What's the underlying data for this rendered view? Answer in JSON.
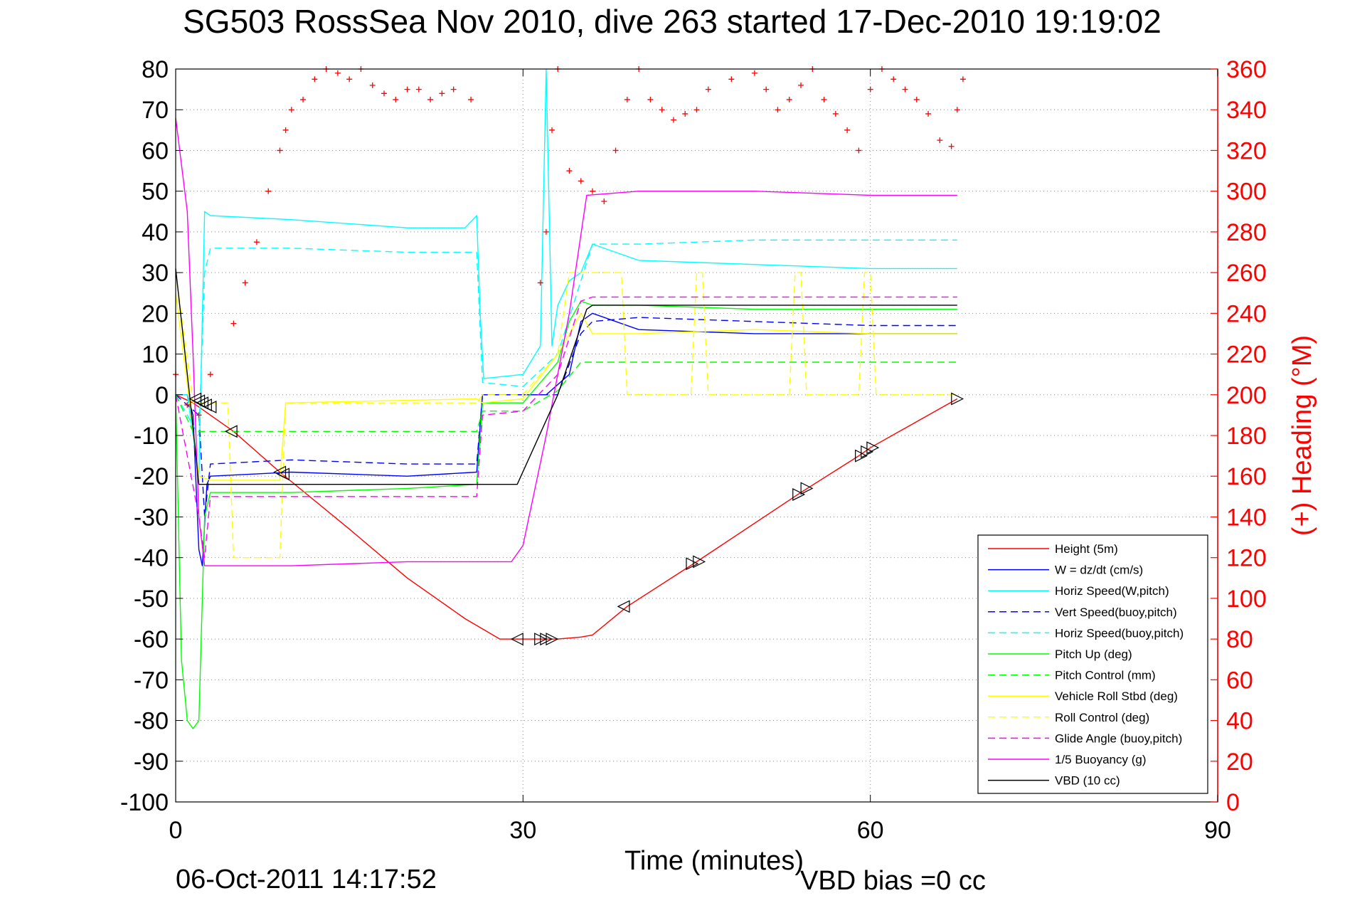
{
  "chart_data": {
    "type": "line",
    "title": "SG503 RossSea Nov 2010, dive 263 started 17-Dec-2010 19:19:02",
    "xlabel": "Time (minutes)",
    "ylabel_right": "(+) Heading (°M)",
    "xlim": [
      0,
      90
    ],
    "ylim": [
      -100,
      80
    ],
    "ylim_right": [
      0,
      360
    ],
    "x_ticks": [
      "0",
      "30",
      "60",
      "90"
    ],
    "y_ticks": [
      "80",
      "70",
      "60",
      "50",
      "40",
      "30",
      "20",
      "10",
      "0",
      "-10",
      "-20",
      "-30",
      "-40",
      "-50",
      "-60",
      "-70",
      "-80",
      "-90",
      "-100"
    ],
    "y_right_ticks": [
      "360",
      "340",
      "320",
      "300",
      "280",
      "260",
      "240",
      "220",
      "200",
      "180",
      "160",
      "140",
      "120",
      "100",
      "80",
      "60",
      "40",
      "20",
      "0"
    ],
    "grid": true,
    "legend_position": "bottom-right",
    "colors": {
      "red": "#ff0000",
      "blue": "#0000ff",
      "cyan": "#00ffff",
      "green": "#00ff00",
      "yellow": "#ffff00",
      "magenta": "#ff00ff",
      "black": "#000000"
    },
    "series": [
      {
        "name": "Height (5m)",
        "color": "#ff0000",
        "style": "solid",
        "x": [
          0,
          1.5,
          2.5,
          5,
          9,
          15,
          20,
          25,
          28,
          30,
          33,
          35,
          36,
          39,
          45,
          54,
          59,
          60,
          67.5
        ],
        "y": [
          0,
          -2,
          -4,
          -9,
          -19,
          -33,
          -45,
          -55,
          -60,
          -60,
          -60,
          -59.5,
          -59,
          -52,
          -41,
          -24,
          -15,
          -13,
          -1
        ]
      },
      {
        "name": "W = dz/dt (cm/s)",
        "color": "#0000ff",
        "style": "solid",
        "x": [
          0,
          1,
          1.5,
          2,
          2.3,
          2.7,
          3,
          10,
          20,
          26,
          26.5,
          30,
          32,
          34,
          35,
          36,
          40,
          50,
          60,
          67.5
        ],
        "y": [
          0,
          0,
          -5,
          -38,
          -42,
          -22,
          -20,
          -19,
          -20,
          -19,
          0,
          0,
          0,
          5,
          18,
          20,
          16,
          15,
          15,
          15
        ]
      },
      {
        "name": "Horiz Speed(W,pitch)",
        "color": "#00ffff",
        "style": "solid",
        "x": [
          0,
          1,
          2,
          2.5,
          3,
          10,
          20,
          25,
          26,
          26.3,
          26.6,
          30,
          31.5,
          32,
          32.5,
          33,
          34,
          35,
          36,
          40,
          50,
          60,
          67.5
        ],
        "y": [
          0,
          0,
          -20,
          45,
          44,
          43,
          41,
          41,
          44,
          20,
          4,
          5,
          12,
          80,
          12,
          22,
          28,
          30,
          37,
          33,
          32,
          31,
          31
        ]
      },
      {
        "name": "Vert Speed(buoy,pitch)",
        "color": "#0000ff",
        "style": "dashed",
        "x": [
          0,
          2,
          2.5,
          3,
          10,
          20,
          26,
          26.5,
          30,
          33,
          35,
          36,
          40,
          50,
          60,
          67.5
        ],
        "y": [
          0,
          -5,
          -30,
          -17,
          -16,
          -17,
          -17,
          0,
          0,
          0,
          15,
          18,
          19,
          18,
          17,
          17
        ]
      },
      {
        "name": "Horiz Speed(buoy,pitch)",
        "color": "#00ffff",
        "style": "dashed",
        "x": [
          0,
          2,
          2.5,
          3,
          10,
          20,
          26,
          26.5,
          30,
          33,
          35,
          36,
          40,
          50,
          60,
          67.5
        ],
        "y": [
          0,
          -10,
          30,
          36,
          36,
          35,
          35,
          3,
          2,
          10,
          28,
          37,
          37,
          38,
          38,
          38
        ]
      },
      {
        "name": "Pitch Up (deg)",
        "color": "#00ff00",
        "style": "solid",
        "x": [
          0,
          0.5,
          1,
          1.5,
          2,
          2.5,
          3,
          10,
          20,
          26,
          26.5,
          30,
          33,
          34,
          35,
          36,
          40,
          50,
          60,
          67.5
        ],
        "y": [
          0,
          -65,
          -80,
          -82,
          -80,
          -30,
          -24,
          -24,
          -23,
          -22,
          -2,
          -2,
          8,
          18,
          23,
          22,
          22,
          21,
          21,
          21
        ]
      },
      {
        "name": "Pitch Control (mm)",
        "color": "#00ff00",
        "style": "dashed",
        "x": [
          0,
          1.5,
          3,
          10,
          26,
          26.5,
          30,
          33,
          35,
          36,
          67.5
        ],
        "y": [
          0,
          -9,
          -9,
          -9,
          -9,
          -4,
          -4,
          1,
          8,
          8,
          8
        ]
      },
      {
        "name": "Vehicle Roll Stbd (deg)",
        "color": "#ffff00",
        "style": "solid",
        "x": [
          0,
          2,
          3,
          9,
          9.5,
          26,
          26.5,
          30,
          33,
          35,
          36,
          40,
          50,
          60,
          67.5
        ],
        "y": [
          25,
          -20,
          -21,
          -21,
          -2,
          -1,
          -2,
          -1,
          10,
          20,
          15,
          15,
          16,
          15,
          15
        ]
      },
      {
        "name": "Roll Control (deg)",
        "color": "#ffff00",
        "style": "dashed",
        "x": [
          0,
          1.5,
          4.5,
          5,
          9,
          9.5,
          26,
          26.5,
          30,
          33,
          34,
          35,
          36,
          38.5,
          39,
          44.5,
          45,
          45.5,
          46,
          53,
          53.5,
          54,
          54.5,
          59,
          59.5,
          60,
          60.5,
          67,
          67.5
        ],
        "y": [
          30,
          -2,
          -2,
          -40,
          -40,
          -2,
          -2,
          0,
          0,
          10,
          30,
          30,
          30,
          30,
          0,
          0,
          30,
          30,
          0,
          0,
          30,
          30,
          0,
          0,
          30,
          30,
          0,
          0,
          0
        ]
      },
      {
        "name": "Glide Angle (buoy,pitch)",
        "color": "#ff00ff",
        "style": "dashed",
        "x": [
          0,
          2,
          2.5,
          3,
          10,
          20,
          26,
          26.5,
          30,
          33,
          35,
          36,
          40,
          50,
          60,
          67.5
        ],
        "y": [
          0,
          -30,
          -40,
          -25,
          -25,
          -25,
          -25,
          -5,
          -4,
          5,
          23,
          24,
          24,
          24,
          24,
          24
        ]
      },
      {
        "name": "1/5 Buoyancy (g)",
        "color": "#ff00ff",
        "style": "solid",
        "x": [
          0,
          1,
          1.5,
          2,
          2.5,
          10,
          20,
          29,
          30,
          32,
          34,
          35.5,
          40,
          50,
          60,
          67.5
        ],
        "y": [
          68,
          45,
          10,
          -30,
          -42,
          -42,
          -41,
          -41,
          -37,
          -10,
          20,
          49,
          50,
          50,
          49,
          49
        ]
      },
      {
        "name": "VBD (10 cc)",
        "color": "#000000",
        "style": "solid",
        "x": [
          0,
          1.2,
          2,
          26,
          27,
          29.5,
          33,
          35.5,
          36,
          67.5
        ],
        "y": [
          31,
          0,
          -22,
          -22,
          -22,
          -22,
          0,
          21,
          22,
          22
        ]
      }
    ],
    "heading": {
      "name": "(+) Heading (°M)",
      "color": "#ff0000",
      "marker": "+",
      "x": [
        0,
        1,
        2,
        3,
        5,
        6,
        7,
        8,
        9,
        9.5,
        10,
        11,
        12,
        13,
        14,
        15,
        16,
        17,
        18,
        19,
        20,
        21,
        22,
        23,
        24,
        25.5,
        31.5,
        32,
        32.5,
        33,
        34,
        35,
        36,
        37,
        38,
        39,
        40,
        41,
        42,
        43,
        44,
        45,
        46,
        48,
        50,
        51,
        52,
        53,
        54,
        55,
        56,
        57,
        58,
        59,
        60,
        61,
        62,
        63,
        64,
        65,
        66,
        67,
        67.5,
        68
      ],
      "y": [
        210,
        195,
        190,
        210,
        235,
        255,
        275,
        300,
        320,
        330,
        340,
        345,
        355,
        360,
        358,
        355,
        360,
        352,
        348,
        345,
        350,
        350,
        345,
        348,
        350,
        345,
        255,
        280,
        330,
        360,
        310,
        305,
        300,
        295,
        320,
        345,
        360,
        345,
        340,
        335,
        338,
        340,
        350,
        355,
        358,
        350,
        340,
        345,
        352,
        360,
        345,
        338,
        330,
        320,
        350,
        360,
        355,
        350,
        345,
        338,
        325,
        322,
        340,
        355
      ]
    },
    "height_markers": [
      {
        "x": 1.7,
        "y": -1,
        "dir": "left"
      },
      {
        "x": 2.0,
        "y": -1.5,
        "dir": "left"
      },
      {
        "x": 2.3,
        "y": -2,
        "dir": "left"
      },
      {
        "x": 2.6,
        "y": -2.5,
        "dir": "left"
      },
      {
        "x": 3.0,
        "y": -3,
        "dir": "left"
      },
      {
        "x": 4.8,
        "y": -9,
        "dir": "left"
      },
      {
        "x": 9.0,
        "y": -19,
        "dir": "left"
      },
      {
        "x": 9.3,
        "y": -19.5,
        "dir": "left"
      },
      {
        "x": 29.5,
        "y": -60,
        "dir": "left"
      },
      {
        "x": 31.5,
        "y": -60,
        "dir": "right"
      },
      {
        "x": 32.0,
        "y": -60,
        "dir": "right"
      },
      {
        "x": 32.5,
        "y": -60,
        "dir": "right"
      },
      {
        "x": 38.7,
        "y": -52,
        "dir": "left"
      },
      {
        "x": 44.6,
        "y": -41.5,
        "dir": "right"
      },
      {
        "x": 45.2,
        "y": -41,
        "dir": "right"
      },
      {
        "x": 53.8,
        "y": -24.5,
        "dir": "right"
      },
      {
        "x": 54.5,
        "y": -23,
        "dir": "right"
      },
      {
        "x": 59.2,
        "y": -15,
        "dir": "right"
      },
      {
        "x": 59.7,
        "y": -14,
        "dir": "right"
      },
      {
        "x": 60.2,
        "y": -13,
        "dir": "right"
      },
      {
        "x": 67.5,
        "y": -1,
        "dir": "right"
      }
    ]
  },
  "footer": {
    "timestamp": "06-Oct-2011 14:17:52",
    "vbd_bias": "VBD bias =0 cc"
  }
}
